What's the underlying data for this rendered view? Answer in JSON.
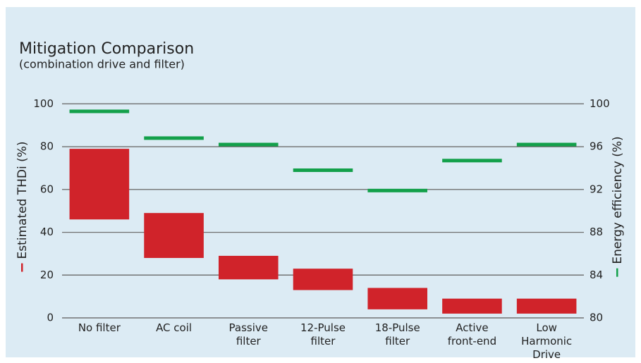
{
  "chart_data": {
    "type": "floating_bar",
    "title": "Mitigation Comparison",
    "subtitle": "(combination drive and filter)",
    "categories": [
      [
        "No filter"
      ],
      [
        "AC coil"
      ],
      [
        "Passive",
        "filter"
      ],
      [
        "12-Pulse",
        "filter"
      ],
      [
        "18-Pulse",
        "filter"
      ],
      [
        "Active",
        "front-end"
      ],
      [
        "Low",
        "Harmonic",
        "Drive"
      ]
    ],
    "series": [
      {
        "name": "Estimated THDi (%)",
        "color": "#d0232a",
        "low": [
          46,
          28,
          18,
          13,
          4,
          2,
          2
        ],
        "high": [
          79,
          49,
          29,
          23,
          14,
          9,
          9
        ]
      },
      {
        "name": "Energy efficiency (%)",
        "color": "#13a04a",
        "axis": "y2",
        "values": [
          99.3,
          96.8,
          96.2,
          93.8,
          91.9,
          94.7,
          96.2
        ]
      }
    ],
    "ylim": [
      0,
      110
    ],
    "yticks": [
      0,
      20,
      40,
      60,
      80,
      100
    ],
    "y2lim": [
      80,
      102
    ],
    "y2ticks": [
      80,
      84,
      88,
      92,
      96,
      100
    ],
    "grid": true
  }
}
